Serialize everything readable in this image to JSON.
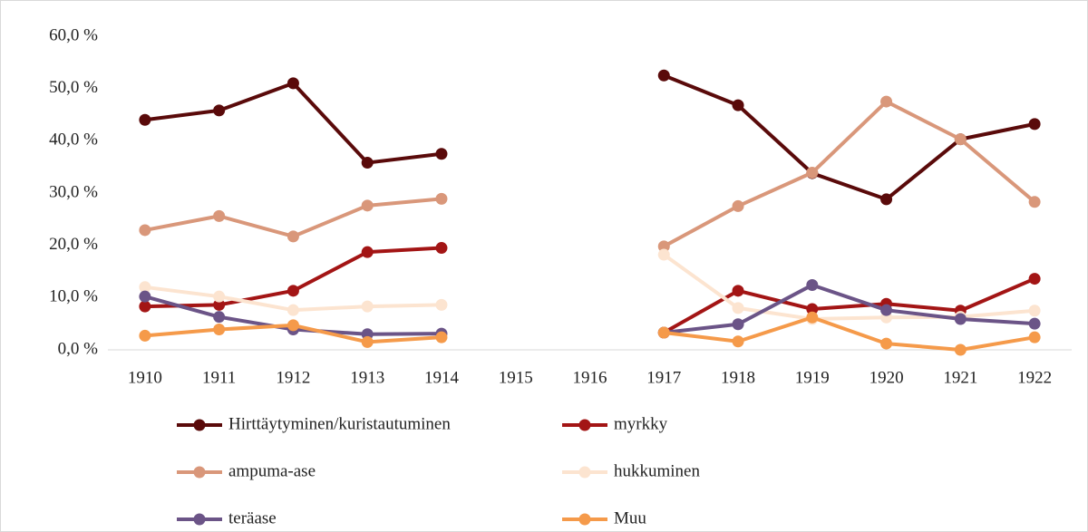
{
  "chart_data": {
    "type": "line",
    "categories": [
      "1910",
      "1911",
      "1912",
      "1913",
      "1914",
      "1915",
      "1916",
      "1917",
      "1918",
      "1919",
      "1920",
      "1921",
      "1922"
    ],
    "series": [
      {
        "name": "Hirttäytyminen/kuristautuminen",
        "color": "#5a0a0a",
        "values": [
          44.0,
          45.8,
          51.0,
          35.8,
          37.5,
          null,
          null,
          52.5,
          46.8,
          33.8,
          28.8,
          40.3,
          43.2
        ]
      },
      {
        "name": "myrkky",
        "color": "#a31515",
        "values": [
          8.3,
          8.6,
          11.3,
          18.7,
          19.5,
          null,
          null,
          3.3,
          11.3,
          7.8,
          8.8,
          7.5,
          13.6
        ]
      },
      {
        "name": "ampuma-ase",
        "color": "#d9977a",
        "values": [
          22.9,
          25.6,
          21.7,
          27.6,
          28.9,
          null,
          null,
          19.8,
          27.5,
          33.9,
          47.5,
          40.3,
          28.3
        ]
      },
      {
        "name": "hukkuminen",
        "color": "#fce4d0",
        "values": [
          12.0,
          10.2,
          7.6,
          8.3,
          8.6,
          null,
          null,
          18.2,
          8.0,
          5.9,
          6.2,
          6.3,
          7.5
        ]
      },
      {
        "name": "teräase",
        "color": "#6b5487",
        "values": [
          10.2,
          6.3,
          3.9,
          3.0,
          3.1,
          null,
          null,
          3.3,
          4.9,
          12.4,
          7.6,
          5.9,
          5.0
        ]
      },
      {
        "name": "Muu",
        "color": "#f59a4a",
        "values": [
          2.7,
          3.9,
          4.7,
          1.5,
          2.4,
          null,
          null,
          3.3,
          1.6,
          6.2,
          1.2,
          0.0,
          2.4
        ]
      }
    ],
    "ylim": [
      0,
      60
    ],
    "yticks": [
      {
        "value": 0,
        "label": "0,0 %"
      },
      {
        "value": 10,
        "label": "10,0 %"
      },
      {
        "value": 20,
        "label": "20,0 %"
      },
      {
        "value": 30,
        "label": "30,0 %"
      },
      {
        "value": 40,
        "label": "40,0 %"
      },
      {
        "value": 50,
        "label": "50,0 %"
      },
      {
        "value": 60,
        "label": "60,0 %"
      }
    ],
    "grid": false,
    "legend": "bottom"
  }
}
